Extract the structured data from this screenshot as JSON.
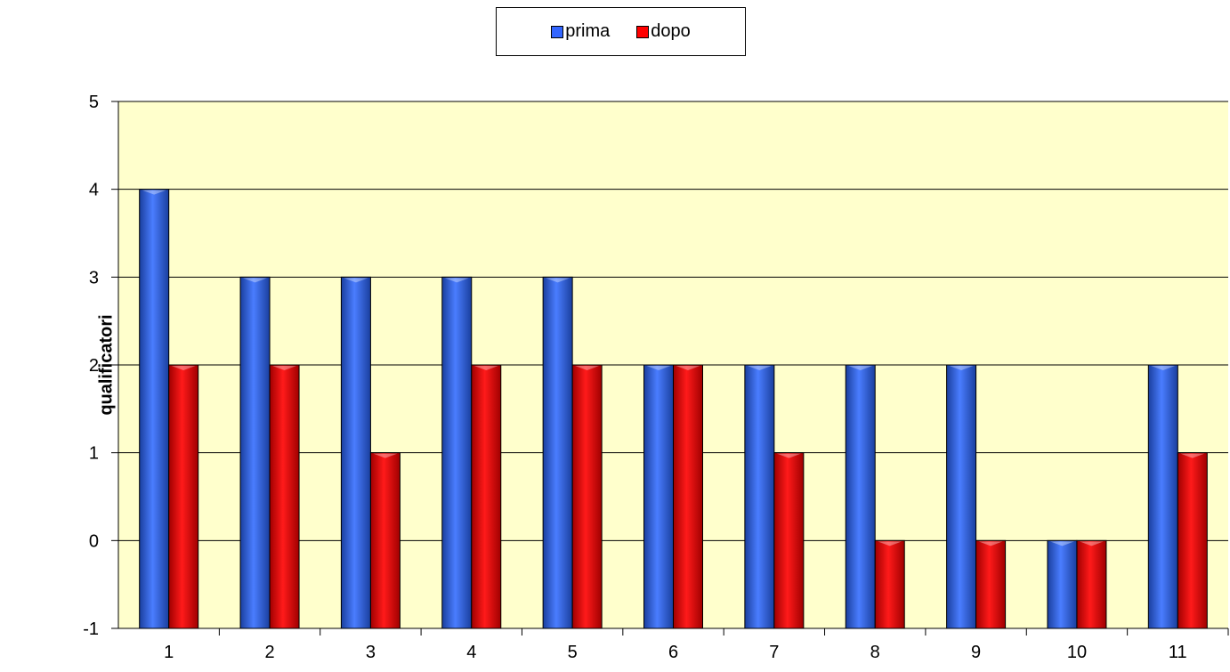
{
  "chart_data": {
    "type": "bar",
    "title": "",
    "xlabel": "",
    "ylabel": "qualificatori",
    "categories": [
      "1",
      "2",
      "3",
      "4",
      "5",
      "6",
      "7",
      "8",
      "9",
      "10",
      "11"
    ],
    "series": [
      {
        "name": "prima",
        "values": [
          4,
          3,
          3,
          3,
          3,
          2,
          2,
          2,
          2,
          0,
          2
        ],
        "color": "#3366ff"
      },
      {
        "name": "dopo",
        "values": [
          2,
          2,
          1,
          2,
          2,
          2,
          1,
          0,
          0,
          0,
          1
        ],
        "color": "#ff0000"
      }
    ],
    "ylim": [
      -1,
      5
    ],
    "yticks": [
      "-1",
      "0",
      "1",
      "2",
      "3",
      "4",
      "5"
    ],
    "grid": true,
    "legend_position": "top-center",
    "plot_background": "#ffffcc"
  }
}
